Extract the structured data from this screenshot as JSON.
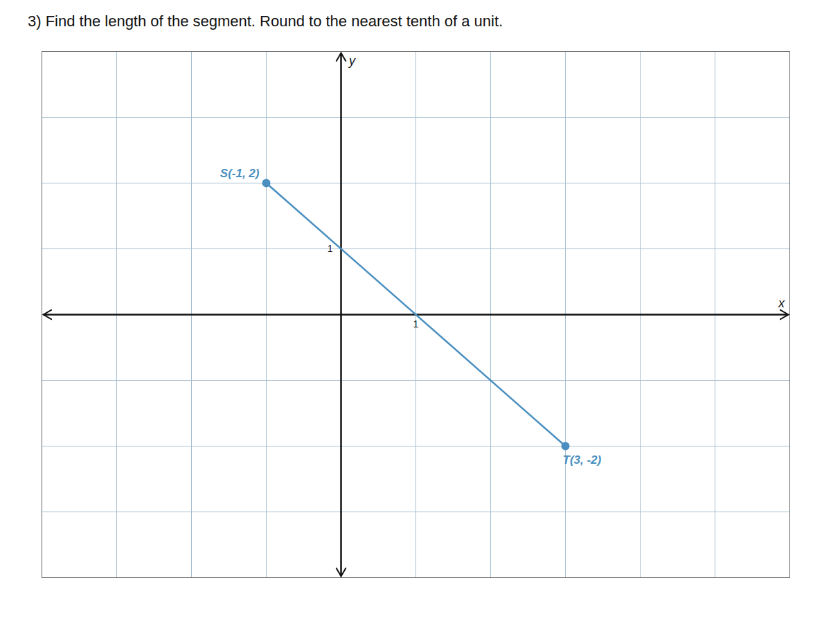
{
  "chart_data": {
    "type": "line",
    "title": "3) Find the length of the segment. Round to the nearest tenth of a unit.",
    "xlabel": "x",
    "ylabel": "y",
    "x": [
      -1,
      3
    ],
    "values": [
      2,
      -2
    ],
    "color": "#4a8fc0",
    "marker": "circle",
    "xlim": [
      -4,
      6
    ],
    "ylim": [
      -4,
      4
    ],
    "xticks": [
      1
    ],
    "yticks": [
      1
    ],
    "grid": true,
    "annotations": [
      {
        "text": "S(-1, 2)",
        "x": -1,
        "y": 2
      },
      {
        "text": "T(3, -2)",
        "x": 3,
        "y": -2
      }
    ]
  }
}
